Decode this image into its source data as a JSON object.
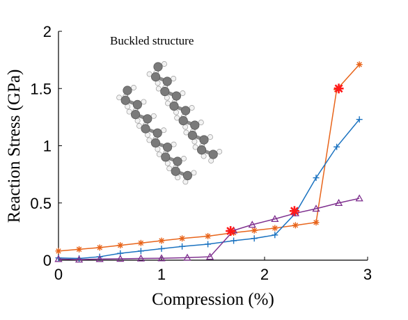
{
  "chart_data": {
    "type": "line",
    "xlabel": "Compression (%)",
    "ylabel": "Reaction Stress (GPa)",
    "xlim": [
      0,
      3
    ],
    "ylim": [
      0,
      2
    ],
    "xticks": [
      "0",
      "1",
      "2",
      "3"
    ],
    "yticks": [
      "0",
      "0.5",
      "1",
      "1.5",
      "2"
    ],
    "grid": false,
    "legend": null,
    "annotation": "Buckled structure",
    "series": [
      {
        "color": "#E8641A",
        "marker": "asterisk",
        "x": [
          0,
          0.2,
          0.4,
          0.6,
          0.8,
          1.0,
          1.2,
          1.45,
          1.7,
          1.9,
          2.1,
          2.3,
          2.5,
          2.7,
          2.92
        ],
        "y": [
          0.08,
          0.095,
          0.11,
          0.13,
          0.15,
          0.17,
          0.19,
          0.21,
          0.24,
          0.26,
          0.28,
          0.305,
          0.33,
          1.49,
          1.71
        ]
      },
      {
        "color": "#1A72C0",
        "marker": "plus",
        "x": [
          0,
          0.2,
          0.4,
          0.6,
          0.8,
          1.0,
          1.2,
          1.45,
          1.7,
          1.9,
          2.1,
          2.3,
          2.5,
          2.7,
          2.92
        ],
        "y": [
          0.02,
          0.015,
          0.03,
          0.06,
          0.08,
          0.1,
          0.12,
          0.14,
          0.17,
          0.19,
          0.22,
          0.41,
          0.72,
          0.99,
          1.23
        ]
      },
      {
        "color": "#7E2F8E",
        "marker": "triangle",
        "x": [
          0,
          0.2,
          0.4,
          0.6,
          0.8,
          1.0,
          1.25,
          1.47,
          1.7,
          1.88,
          2.1,
          2.3,
          2.5,
          2.72,
          2.92
        ],
        "y": [
          0.01,
          0.005,
          0.01,
          0.012,
          0.015,
          0.017,
          0.022,
          0.03,
          0.26,
          0.31,
          0.36,
          0.41,
          0.45,
          0.5,
          0.54
        ]
      }
    ],
    "highlights": {
      "color": "#FF1A1A",
      "marker": "asterisk",
      "points": [
        {
          "x": 1.67,
          "y": 0.255
        },
        {
          "x": 2.29,
          "y": 0.43
        },
        {
          "x": 2.72,
          "y": 1.5
        }
      ]
    }
  },
  "molecule": {
    "atom_color": "#7a7a7a",
    "hydrogen_color": "#f2f2f2"
  }
}
